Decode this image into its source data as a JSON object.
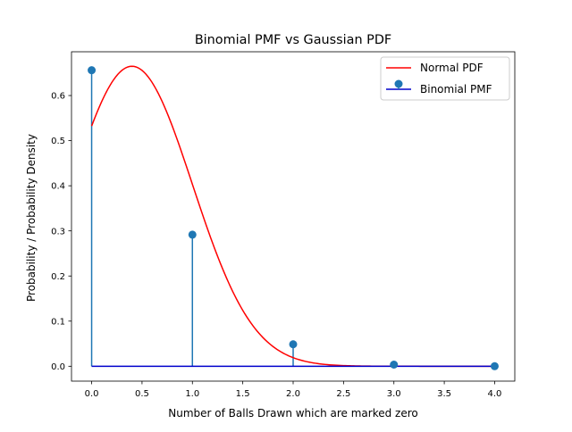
{
  "chart_data": {
    "type": "line",
    "title": "Binomial PMF vs Gaussian PDF",
    "xlabel": "Number of Balls Drawn which are marked zero",
    "ylabel": "Probability / Probability Density",
    "xlim": [
      -0.2,
      4.2
    ],
    "ylim": [
      -0.033,
      0.697
    ],
    "x_ticks": [
      0.0,
      0.5,
      1.0,
      1.5,
      2.0,
      2.5,
      3.0,
      3.5,
      4.0
    ],
    "x_tick_labels": [
      "0.0",
      "0.5",
      "1.0",
      "1.5",
      "2.0",
      "2.5",
      "3.0",
      "3.5",
      "4.0"
    ],
    "y_ticks": [
      0.0,
      0.1,
      0.2,
      0.3,
      0.4,
      0.5,
      0.6
    ],
    "y_tick_labels": [
      "0.0",
      "0.1",
      "0.2",
      "0.3",
      "0.4",
      "0.5",
      "0.6"
    ],
    "grid": false,
    "legend_position": "top-right",
    "series": [
      {
        "name": "Normal PDF",
        "kind": "line",
        "color": "#ff0000",
        "mean": 0.4,
        "std": 0.6,
        "x_range": [
          0,
          4
        ]
      },
      {
        "name": "Binomial PMF",
        "kind": "stem",
        "color": "#1f77b4",
        "baseline_color": "#0000cc",
        "x": [
          0,
          1,
          2,
          3,
          4
        ],
        "y": [
          0.6561,
          0.2916,
          0.0486,
          0.0036,
          0.0001
        ]
      }
    ]
  }
}
